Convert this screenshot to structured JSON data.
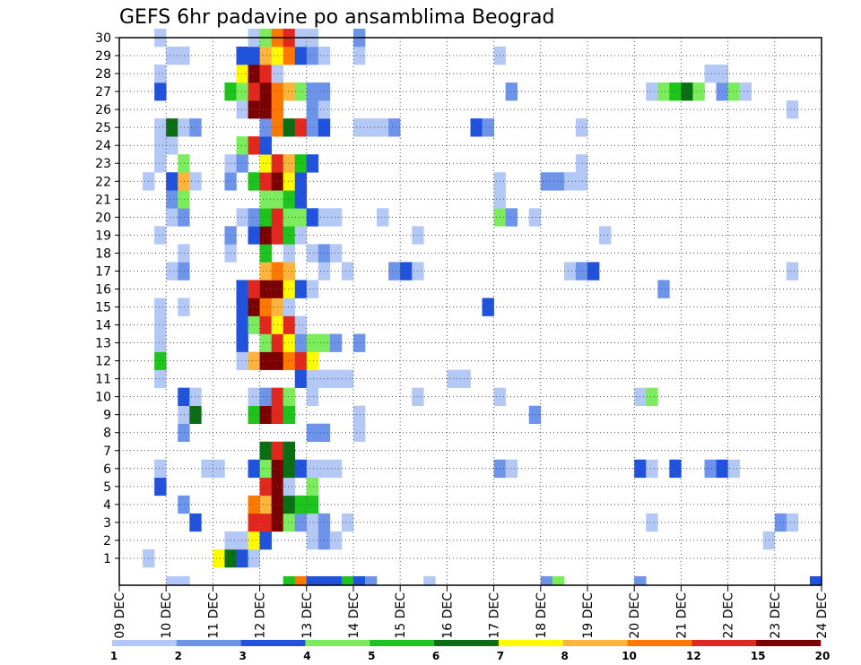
{
  "chart_data": {
    "type": "heatmap",
    "title": "GEFS 6hr padavine po ansamblima Beograd",
    "xlabel": "",
    "ylabel": "",
    "x_ticks": [
      "09 DEC",
      "10 DEC",
      "11 DEC",
      "12 DEC",
      "13 DEC",
      "14 DEC",
      "15 DEC",
      "16 DEC",
      "17 DEC",
      "18 DEC",
      "19 DEC",
      "20 DEC",
      "21 DEC",
      "22 DEC",
      "23 DEC",
      "24 DEC"
    ],
    "y_ticks": [
      "1",
      "2",
      "3",
      "4",
      "5",
      "6",
      "7",
      "8",
      "9",
      "10",
      "11",
      "12",
      "13",
      "14",
      "15",
      "16",
      "17",
      "18",
      "19",
      "20",
      "21",
      "22",
      "23",
      "24",
      "25",
      "26",
      "27",
      "28",
      "29",
      "30"
    ],
    "x_range_steps": [
      0,
      60
    ],
    "y_range": [
      0,
      30
    ],
    "steps_per_day": 4,
    "grid": true,
    "legend_position": "bottom",
    "legend": {
      "labels": [
        "1",
        "2",
        "3",
        "4",
        "5",
        "6",
        "7",
        "8",
        "10",
        "12",
        "15",
        "20"
      ],
      "colors": [
        "#b4c8f5",
        "#6e94ea",
        "#2052dc",
        "#7cec5e",
        "#1ec31e",
        "#0c6e14",
        "#fffa00",
        "#ffb43c",
        "#ff7800",
        "#e0281e",
        "#7a0000"
      ]
    },
    "cells": [
      [
        1,
        2,
        0
      ],
      [
        1,
        8,
        6
      ],
      [
        1,
        9,
        5
      ],
      [
        1,
        10,
        2
      ],
      [
        1,
        11,
        0
      ],
      [
        2,
        9,
        0
      ],
      [
        2,
        10,
        0
      ],
      [
        2,
        11,
        6
      ],
      [
        2,
        12,
        2
      ],
      [
        2,
        16,
        0
      ],
      [
        2,
        17,
        1
      ],
      [
        2,
        18,
        0
      ],
      [
        2,
        55,
        0
      ],
      [
        3,
        6,
        2
      ],
      [
        3,
        11,
        9
      ],
      [
        3,
        12,
        9
      ],
      [
        3,
        13,
        10
      ],
      [
        3,
        14,
        3
      ],
      [
        3,
        15,
        1
      ],
      [
        3,
        16,
        0
      ],
      [
        3,
        17,
        1
      ],
      [
        3,
        19,
        0
      ],
      [
        3,
        45,
        0
      ],
      [
        3,
        56,
        1
      ],
      [
        3,
        57,
        0
      ],
      [
        4,
        5,
        1
      ],
      [
        4,
        11,
        8
      ],
      [
        4,
        12,
        7
      ],
      [
        4,
        13,
        10
      ],
      [
        4,
        14,
        5
      ],
      [
        4,
        15,
        4
      ],
      [
        4,
        16,
        4
      ],
      [
        5,
        3,
        2
      ],
      [
        5,
        12,
        9
      ],
      [
        5,
        13,
        10
      ],
      [
        5,
        14,
        0
      ],
      [
        5,
        16,
        3
      ],
      [
        6,
        3,
        0
      ],
      [
        6,
        7,
        0
      ],
      [
        6,
        8,
        0
      ],
      [
        6,
        11,
        2
      ],
      [
        6,
        12,
        3
      ],
      [
        6,
        13,
        10
      ],
      [
        6,
        14,
        5
      ],
      [
        6,
        15,
        2
      ],
      [
        6,
        16,
        0
      ],
      [
        6,
        17,
        0
      ],
      [
        6,
        18,
        0
      ],
      [
        6,
        32,
        1
      ],
      [
        6,
        33,
        0
      ],
      [
        6,
        44,
        2
      ],
      [
        6,
        45,
        0
      ],
      [
        6,
        47,
        2
      ],
      [
        6,
        50,
        1
      ],
      [
        6,
        51,
        2
      ],
      [
        6,
        52,
        0
      ],
      [
        7,
        12,
        5
      ],
      [
        7,
        13,
        9
      ],
      [
        7,
        14,
        5
      ],
      [
        8,
        5,
        1
      ],
      [
        8,
        16,
        1
      ],
      [
        8,
        17,
        1
      ],
      [
        8,
        20,
        0
      ],
      [
        9,
        5,
        0
      ],
      [
        9,
        6,
        5
      ],
      [
        9,
        11,
        4
      ],
      [
        9,
        12,
        10
      ],
      [
        9,
        13,
        9
      ],
      [
        9,
        14,
        4
      ],
      [
        9,
        20,
        0
      ],
      [
        9,
        35,
        1
      ],
      [
        10,
        5,
        2
      ],
      [
        10,
        6,
        0
      ],
      [
        10,
        11,
        0
      ],
      [
        10,
        12,
        1
      ],
      [
        10,
        13,
        9
      ],
      [
        10,
        14,
        3
      ],
      [
        10,
        16,
        0
      ],
      [
        10,
        25,
        0
      ],
      [
        10,
        32,
        0
      ],
      [
        10,
        44,
        0
      ],
      [
        10,
        45,
        3
      ],
      [
        11,
        3,
        0
      ],
      [
        11,
        15,
        2
      ],
      [
        11,
        16,
        0
      ],
      [
        11,
        17,
        0
      ],
      [
        11,
        18,
        0
      ],
      [
        11,
        19,
        0
      ],
      [
        11,
        28,
        0
      ],
      [
        11,
        29,
        0
      ],
      [
        12,
        3,
        4
      ],
      [
        12,
        10,
        0
      ],
      [
        12,
        11,
        7
      ],
      [
        12,
        12,
        10
      ],
      [
        12,
        13,
        10
      ],
      [
        12,
        14,
        8
      ],
      [
        12,
        15,
        9
      ],
      [
        12,
        16,
        6
      ],
      [
        13,
        3,
        0
      ],
      [
        13,
        10,
        2
      ],
      [
        13,
        12,
        3
      ],
      [
        13,
        13,
        9
      ],
      [
        13,
        14,
        6
      ],
      [
        13,
        15,
        1
      ],
      [
        13,
        16,
        3
      ],
      [
        13,
        17,
        3
      ],
      [
        13,
        18,
        1
      ],
      [
        13,
        20,
        1
      ],
      [
        14,
        3,
        0
      ],
      [
        14,
        10,
        2
      ],
      [
        14,
        11,
        3
      ],
      [
        14,
        12,
        9
      ],
      [
        14,
        13,
        6
      ],
      [
        14,
        14,
        9
      ],
      [
        14,
        15,
        0
      ],
      [
        15,
        3,
        0
      ],
      [
        15,
        5,
        0
      ],
      [
        15,
        10,
        2
      ],
      [
        15,
        11,
        10
      ],
      [
        15,
        12,
        8
      ],
      [
        15,
        13,
        7
      ],
      [
        15,
        14,
        0
      ],
      [
        15,
        31,
        2
      ],
      [
        16,
        10,
        2
      ],
      [
        16,
        11,
        9
      ],
      [
        16,
        12,
        10
      ],
      [
        16,
        13,
        10
      ],
      [
        16,
        14,
        6
      ],
      [
        16,
        15,
        2
      ],
      [
        16,
        16,
        0
      ],
      [
        16,
        46,
        1
      ],
      [
        17,
        4,
        0
      ],
      [
        17,
        5,
        1
      ],
      [
        17,
        12,
        7
      ],
      [
        17,
        13,
        8
      ],
      [
        17,
        14,
        7
      ],
      [
        17,
        17,
        0
      ],
      [
        17,
        19,
        0
      ],
      [
        17,
        23,
        1
      ],
      [
        17,
        24,
        2
      ],
      [
        17,
        25,
        0
      ],
      [
        17,
        38,
        0
      ],
      [
        17,
        39,
        1
      ],
      [
        17,
        40,
        2
      ],
      [
        17,
        57,
        0
      ],
      [
        18,
        5,
        0
      ],
      [
        18,
        9,
        0
      ],
      [
        18,
        12,
        4
      ],
      [
        18,
        14,
        0
      ],
      [
        18,
        16,
        0
      ],
      [
        18,
        17,
        1
      ],
      [
        18,
        18,
        0
      ],
      [
        19,
        3,
        0
      ],
      [
        19,
        9,
        1
      ],
      [
        19,
        11,
        2
      ],
      [
        19,
        12,
        10
      ],
      [
        19,
        13,
        9
      ],
      [
        19,
        14,
        4
      ],
      [
        19,
        15,
        0
      ],
      [
        19,
        25,
        0
      ],
      [
        19,
        41,
        0
      ],
      [
        20,
        4,
        0
      ],
      [
        20,
        5,
        1
      ],
      [
        20,
        10,
        0
      ],
      [
        20,
        11,
        1
      ],
      [
        20,
        12,
        4
      ],
      [
        20,
        13,
        9
      ],
      [
        20,
        14,
        3
      ],
      [
        20,
        15,
        3
      ],
      [
        20,
        16,
        2
      ],
      [
        20,
        17,
        0
      ],
      [
        20,
        18,
        0
      ],
      [
        20,
        22,
        0
      ],
      [
        20,
        32,
        3
      ],
      [
        20,
        33,
        1
      ],
      [
        20,
        35,
        0
      ],
      [
        21,
        4,
        1
      ],
      [
        21,
        5,
        3
      ],
      [
        21,
        12,
        3
      ],
      [
        21,
        13,
        3
      ],
      [
        21,
        14,
        4
      ],
      [
        21,
        15,
        2
      ],
      [
        21,
        32,
        0
      ],
      [
        22,
        2,
        0
      ],
      [
        22,
        4,
        2
      ],
      [
        22,
        5,
        7
      ],
      [
        22,
        6,
        0
      ],
      [
        22,
        9,
        1
      ],
      [
        22,
        11,
        4
      ],
      [
        22,
        12,
        9
      ],
      [
        22,
        13,
        10
      ],
      [
        22,
        14,
        6
      ],
      [
        22,
        15,
        2
      ],
      [
        22,
        32,
        0
      ],
      [
        22,
        36,
        1
      ],
      [
        22,
        37,
        1
      ],
      [
        22,
        38,
        0
      ],
      [
        22,
        39,
        0
      ],
      [
        23,
        3,
        0
      ],
      [
        23,
        5,
        3
      ],
      [
        23,
        9,
        0
      ],
      [
        23,
        10,
        1
      ],
      [
        23,
        12,
        6
      ],
      [
        23,
        13,
        9
      ],
      [
        23,
        14,
        7
      ],
      [
        23,
        15,
        4
      ],
      [
        23,
        16,
        2
      ],
      [
        23,
        39,
        0
      ],
      [
        24,
        3,
        0
      ],
      [
        24,
        4,
        0
      ],
      [
        24,
        10,
        3
      ],
      [
        24,
        11,
        9
      ],
      [
        24,
        12,
        2
      ],
      [
        25,
        3,
        0
      ],
      [
        25,
        4,
        5
      ],
      [
        25,
        5,
        0
      ],
      [
        25,
        6,
        1
      ],
      [
        25,
        12,
        1
      ],
      [
        25,
        13,
        8
      ],
      [
        25,
        14,
        5
      ],
      [
        25,
        15,
        9
      ],
      [
        25,
        16,
        1
      ],
      [
        25,
        17,
        2
      ],
      [
        25,
        20,
        0
      ],
      [
        25,
        21,
        0
      ],
      [
        25,
        22,
        0
      ],
      [
        25,
        23,
        1
      ],
      [
        25,
        30,
        2
      ],
      [
        25,
        31,
        1
      ],
      [
        25,
        39,
        0
      ],
      [
        26,
        10,
        0
      ],
      [
        26,
        11,
        10
      ],
      [
        26,
        12,
        10
      ],
      [
        26,
        13,
        8
      ],
      [
        26,
        16,
        1
      ],
      [
        26,
        17,
        0
      ],
      [
        26,
        57,
        0
      ],
      [
        27,
        3,
        2
      ],
      [
        27,
        9,
        4
      ],
      [
        27,
        10,
        3
      ],
      [
        27,
        11,
        9
      ],
      [
        27,
        12,
        10
      ],
      [
        27,
        13,
        8
      ],
      [
        27,
        14,
        7
      ],
      [
        27,
        15,
        3
      ],
      [
        27,
        16,
        1
      ],
      [
        27,
        17,
        1
      ],
      [
        27,
        33,
        1
      ],
      [
        27,
        45,
        0
      ],
      [
        27,
        46,
        3
      ],
      [
        27,
        47,
        4
      ],
      [
        27,
        48,
        5
      ],
      [
        27,
        49,
        3
      ],
      [
        27,
        51,
        1
      ],
      [
        27,
        52,
        3
      ],
      [
        27,
        53,
        0
      ],
      [
        28,
        3,
        0
      ],
      [
        28,
        10,
        6
      ],
      [
        28,
        11,
        10
      ],
      [
        28,
        12,
        9
      ],
      [
        28,
        13,
        0
      ],
      [
        28,
        50,
        0
      ],
      [
        28,
        51,
        0
      ],
      [
        29,
        4,
        0
      ],
      [
        29,
        5,
        0
      ],
      [
        29,
        10,
        2
      ],
      [
        29,
        11,
        2
      ],
      [
        29,
        12,
        7
      ],
      [
        29,
        13,
        6
      ],
      [
        29,
        14,
        8
      ],
      [
        29,
        15,
        2
      ],
      [
        29,
        16,
        1
      ],
      [
        29,
        17,
        0
      ],
      [
        29,
        20,
        0
      ],
      [
        29,
        32,
        0
      ],
      [
        30,
        3,
        0
      ],
      [
        30,
        11,
        0
      ],
      [
        30,
        12,
        3
      ],
      [
        30,
        13,
        8
      ],
      [
        30,
        14,
        9
      ],
      [
        30,
        15,
        0
      ],
      [
        30,
        16,
        0
      ],
      [
        30,
        20,
        1
      ]
    ],
    "bottom_strip": [
      [
        4,
        0
      ],
      [
        5,
        0
      ],
      [
        14,
        4
      ],
      [
        15,
        8
      ],
      [
        16,
        2
      ],
      [
        17,
        2
      ],
      [
        18,
        2
      ],
      [
        19,
        4
      ],
      [
        20,
        2
      ],
      [
        21,
        1
      ],
      [
        26,
        0
      ],
      [
        36,
        1
      ],
      [
        37,
        3
      ],
      [
        44,
        1
      ],
      [
        59,
        2
      ]
    ]
  }
}
